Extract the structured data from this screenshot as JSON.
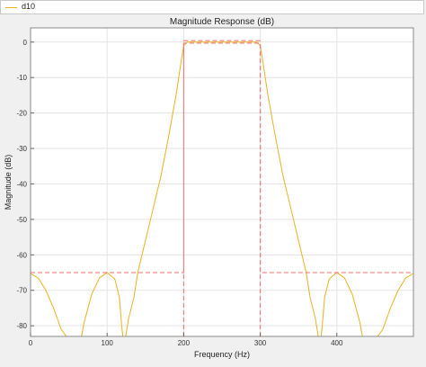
{
  "legend": {
    "items": [
      {
        "label": "d10",
        "color": "#edb120"
      }
    ]
  },
  "chart_data": {
    "type": "line",
    "title": "Magnitude Response (dB)",
    "xlabel": "Frequency (Hz)",
    "ylabel": "Magnitude (dB)",
    "xlim": [
      0,
      500
    ],
    "ylim": [
      -83,
      4
    ],
    "xticks": [
      0,
      100,
      200,
      300,
      400
    ],
    "yticks": [
      0,
      -10,
      -20,
      -30,
      -40,
      -50,
      -60,
      -70,
      -80
    ],
    "grid": true,
    "series": [
      {
        "name": "d10",
        "style": "solid",
        "color": "#edb120",
        "x": [
          0,
          10,
          20,
          30,
          40,
          50,
          57,
          61,
          64,
          70,
          80,
          90,
          100,
          110,
          116,
          119,
          122,
          128,
          135,
          140,
          150,
          160,
          170,
          180,
          190,
          197,
          200,
          205,
          250,
          295,
          300,
          303,
          310,
          320,
          330,
          340,
          350,
          360,
          365,
          372,
          378,
          381,
          384,
          390,
          400,
          410,
          420,
          430,
          436,
          439,
          442,
          450,
          460,
          470,
          480,
          490,
          500
        ],
        "y": [
          -65.3,
          -66.5,
          -70,
          -75,
          -81,
          -84,
          -86,
          -90,
          -86,
          -79,
          -71,
          -66.5,
          -65,
          -66.8,
          -72,
          -80,
          -86,
          -78,
          -72,
          -65,
          -56,
          -47,
          -38,
          -27,
          -15,
          -5,
          -1,
          0,
          0,
          0,
          -1,
          -5,
          -15,
          -27,
          -38,
          -47,
          -56,
          -65,
          -72,
          -78,
          -86,
          -80,
          -72,
          -66.8,
          -65,
          -66.5,
          -71,
          -79,
          -86,
          -90,
          -86,
          -84,
          -81,
          -75,
          -70,
          -66.5,
          -65.3
        ]
      },
      {
        "name": "spec",
        "style": "dashed",
        "color": "#f07c7c",
        "x": [
          0,
          200,
          200,
          300,
          300,
          500
        ],
        "y": [
          -65,
          -65,
          -0.3,
          -0.3,
          -65,
          -65
        ],
        "extra_segments": [
          {
            "x": [
              200,
              200
            ],
            "y": [
              -83,
              0.4
            ]
          },
          {
            "x": [
              300,
              300
            ],
            "y": [
              -83,
              0.4
            ]
          },
          {
            "x": [
              200,
              300
            ],
            "y": [
              0.4,
              0.4
            ]
          }
        ]
      }
    ]
  }
}
